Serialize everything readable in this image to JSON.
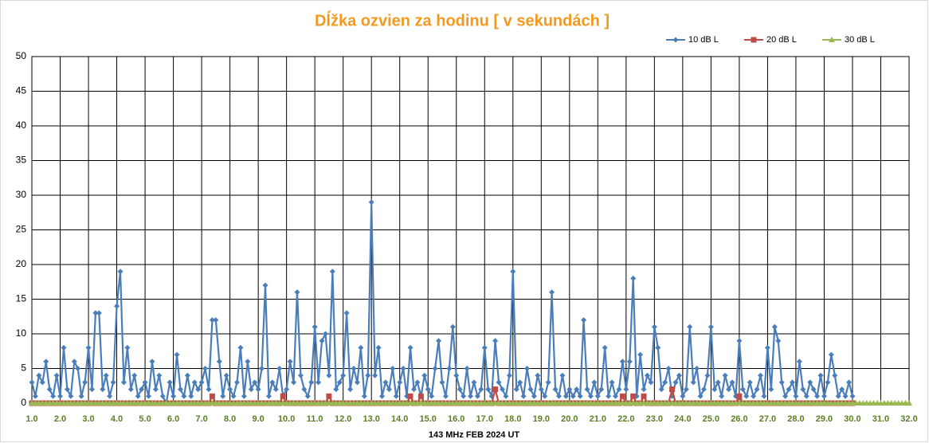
{
  "chart_data": {
    "type": "line",
    "title": "Dĺžka ozvien za hodinu [ v sekundách ]",
    "xlabel": "143 MHz FEB  2024  UT",
    "legend": "top-right",
    "grid": true,
    "xlim": [
      1,
      32
    ],
    "ylim": [
      0,
      50
    ],
    "yticks": [
      0,
      5,
      10,
      15,
      20,
      25,
      30,
      35,
      40,
      45,
      50
    ],
    "xticks": [
      {
        "value": 1,
        "label": "1.0"
      },
      {
        "value": 2,
        "label": "2.0"
      },
      {
        "value": 3,
        "label": "3.0"
      },
      {
        "value": 4,
        "label": "4.0"
      },
      {
        "value": 5,
        "label": "5.0"
      },
      {
        "value": 6,
        "label": "6.0"
      },
      {
        "value": 7,
        "label": "7.0"
      },
      {
        "value": 8,
        "label": "8.0"
      },
      {
        "value": 9,
        "label": "9.0"
      },
      {
        "value": 10,
        "label": "10.0"
      },
      {
        "value": 11,
        "label": "11.0"
      },
      {
        "value": 12,
        "label": "12.0"
      },
      {
        "value": 13,
        "label": "13.0"
      },
      {
        "value": 14,
        "label": "14.0"
      },
      {
        "value": 15,
        "label": "15.0"
      },
      {
        "value": 16,
        "label": "16.0"
      },
      {
        "value": 17,
        "label": "17.0"
      },
      {
        "value": 18,
        "label": "18.0"
      },
      {
        "value": 19,
        "label": "19.0"
      },
      {
        "value": 20,
        "label": "20.0"
      },
      {
        "value": 21,
        "label": "21.0"
      },
      {
        "value": 22,
        "label": "22.0"
      },
      {
        "value": 23,
        "label": "23.0"
      },
      {
        "value": 24,
        "label": "24.0"
      },
      {
        "value": 25,
        "label": "25.0"
      },
      {
        "value": 26,
        "label": "26.0"
      },
      {
        "value": 27,
        "label": "27.0"
      },
      {
        "value": 28,
        "label": "28.0"
      },
      {
        "value": 29,
        "label": "29.0"
      },
      {
        "value": 30,
        "label": "30.0"
      },
      {
        "value": 31,
        "label": "31.0"
      },
      {
        "value": 32,
        "label": "32.0"
      }
    ],
    "x": [
      1,
      1.125,
      1.25,
      1.375,
      1.5,
      1.625,
      1.75,
      1.875,
      2,
      2.125,
      2.25,
      2.375,
      2.5,
      2.625,
      2.75,
      2.875,
      3,
      3.125,
      3.25,
      3.375,
      3.5,
      3.625,
      3.75,
      3.875,
      4,
      4.125,
      4.25,
      4.375,
      4.5,
      4.625,
      4.75,
      4.875,
      5,
      5.125,
      5.25,
      5.375,
      5.5,
      5.625,
      5.75,
      5.875,
      6,
      6.125,
      6.25,
      6.375,
      6.5,
      6.625,
      6.75,
      6.875,
      7,
      7.125,
      7.25,
      7.375,
      7.5,
      7.625,
      7.75,
      7.875,
      8,
      8.125,
      8.25,
      8.375,
      8.5,
      8.625,
      8.75,
      8.875,
      9,
      9.125,
      9.25,
      9.375,
      9.5,
      9.625,
      9.75,
      9.875,
      10,
      10.125,
      10.25,
      10.375,
      10.5,
      10.625,
      10.75,
      10.875,
      11,
      11.125,
      11.25,
      11.375,
      11.5,
      11.625,
      11.75,
      11.875,
      12,
      12.125,
      12.25,
      12.375,
      12.5,
      12.625,
      12.75,
      12.875,
      13,
      13.125,
      13.25,
      13.375,
      13.5,
      13.625,
      13.75,
      13.875,
      14,
      14.125,
      14.25,
      14.375,
      14.5,
      14.625,
      14.75,
      14.875,
      15,
      15.125,
      15.25,
      15.375,
      15.5,
      15.625,
      15.75,
      15.875,
      16,
      16.125,
      16.25,
      16.375,
      16.5,
      16.625,
      16.75,
      16.875,
      17,
      17.125,
      17.25,
      17.375,
      17.5,
      17.625,
      17.75,
      17.875,
      18,
      18.125,
      18.25,
      18.375,
      18.5,
      18.625,
      18.75,
      18.875,
      19,
      19.125,
      19.25,
      19.375,
      19.5,
      19.625,
      19.75,
      19.875,
      20,
      20.125,
      20.25,
      20.375,
      20.5,
      20.625,
      20.75,
      20.875,
      21,
      21.125,
      21.25,
      21.375,
      21.5,
      21.625,
      21.75,
      21.875,
      22,
      22.125,
      22.25,
      22.375,
      22.5,
      22.625,
      22.75,
      22.875,
      23,
      23.125,
      23.25,
      23.375,
      23.5,
      23.625,
      23.75,
      23.875,
      24,
      24.125,
      24.25,
      24.375,
      24.5,
      24.625,
      24.75,
      24.875,
      25,
      25.125,
      25.25,
      25.375,
      25.5,
      25.625,
      25.75,
      25.875,
      26,
      26.125,
      26.25,
      26.375,
      26.5,
      26.625,
      26.75,
      26.875,
      27,
      27.125,
      27.25,
      27.375,
      27.5,
      27.625,
      27.75,
      27.875,
      28,
      28.125,
      28.25,
      28.375,
      28.5,
      28.625,
      28.75,
      28.875,
      29,
      29.125,
      29.25,
      29.375,
      29.5,
      29.625,
      29.75,
      29.875,
      30,
      30.125,
      30.25,
      30.375,
      30.5,
      30.625,
      30.75,
      30.875,
      31,
      31.125,
      31.25,
      31.375,
      31.5,
      31.625,
      31.75,
      31.875,
      32
    ],
    "series": [
      {
        "name": "10 dB L",
        "color": "#4a7ebb",
        "marker": "diamond",
        "values": [
          3,
          1,
          4,
          3,
          6,
          2,
          1,
          4,
          1,
          8,
          2,
          1,
          6,
          5,
          1,
          3,
          8,
          2,
          13,
          13,
          2,
          4,
          1,
          3,
          14,
          19,
          3,
          8,
          2,
          4,
          1,
          2,
          3,
          1,
          6,
          2,
          4,
          1,
          0,
          3,
          1,
          7,
          2,
          1,
          4,
          1,
          3,
          2,
          3,
          5,
          2,
          12,
          12,
          6,
          1,
          4,
          2,
          1,
          3,
          8,
          1,
          6,
          2,
          3,
          2,
          5,
          17,
          1,
          3,
          2,
          5,
          1,
          2,
          6,
          3,
          16,
          4,
          2,
          1,
          3,
          11,
          3,
          9,
          10,
          4,
          19,
          2,
          3,
          4,
          13,
          2,
          5,
          3,
          8,
          1,
          4,
          29,
          4,
          8,
          1,
          3,
          2,
          5,
          1,
          3,
          5,
          1,
          8,
          2,
          3,
          1,
          4,
          2,
          1,
          5,
          9,
          3,
          1,
          5,
          11,
          4,
          2,
          1,
          5,
          1,
          3,
          1,
          2,
          8,
          2,
          1,
          9,
          3,
          2,
          1,
          4,
          19,
          2,
          3,
          1,
          5,
          2,
          1,
          4,
          2,
          1,
          3,
          16,
          2,
          1,
          4,
          1,
          2,
          1,
          2,
          1,
          12,
          2,
          1,
          3,
          1,
          2,
          8,
          1,
          3,
          1,
          2,
          6,
          2,
          6,
          18,
          1,
          7,
          2,
          4,
          3,
          11,
          8,
          2,
          3,
          5,
          1,
          3,
          4,
          1,
          2,
          11,
          3,
          5,
          1,
          2,
          4,
          11,
          2,
          3,
          1,
          4,
          2,
          3,
          1,
          9,
          2,
          1,
          3,
          1,
          2,
          4,
          1,
          8,
          2,
          11,
          9,
          3,
          1,
          2,
          3,
          1,
          6,
          2,
          1,
          3,
          2,
          1,
          4,
          1,
          3,
          7,
          4,
          1,
          2,
          1,
          3,
          1,
          null,
          null,
          null,
          null,
          null,
          null,
          null,
          null,
          null,
          null,
          null,
          null,
          null,
          null,
          null,
          null
        ]
      },
      {
        "name": "20 dB L",
        "color": "#be4b48",
        "marker": "square",
        "values": [
          0,
          0,
          0,
          0,
          0,
          0,
          0,
          0,
          0,
          0,
          0,
          0,
          0,
          0,
          0,
          0,
          0,
          0,
          0,
          0,
          0,
          0,
          0,
          0,
          0,
          0,
          0,
          0,
          0,
          0,
          0,
          0,
          0,
          0,
          0,
          0,
          0,
          0,
          0,
          0,
          0,
          0,
          0,
          0,
          0,
          0,
          0,
          0,
          0,
          0,
          0,
          1,
          0,
          0,
          0,
          0,
          0,
          0,
          0,
          0,
          0,
          0,
          0,
          0,
          0,
          0,
          0,
          0,
          0,
          0,
          0,
          1,
          0,
          0,
          0,
          0,
          0,
          0,
          0,
          0,
          0,
          0,
          0,
          0,
          1,
          0,
          0,
          0,
          0,
          0,
          0,
          0,
          0,
          0,
          0,
          0,
          0,
          0,
          0,
          0,
          0,
          0,
          0,
          0,
          0,
          0,
          0,
          1,
          0,
          0,
          1,
          0,
          0,
          0,
          0,
          0,
          0,
          0,
          0,
          0,
          0,
          0,
          0,
          0,
          0,
          0,
          0,
          0,
          0,
          0,
          0,
          2,
          0,
          0,
          0,
          0,
          0,
          0,
          0,
          0,
          0,
          0,
          0,
          0,
          0,
          0,
          0,
          0,
          0,
          0,
          0,
          0,
          0,
          0,
          0,
          0,
          0,
          0,
          0,
          0,
          0,
          0,
          0,
          0,
          0,
          0,
          0,
          1,
          0,
          0,
          1,
          0,
          0,
          1,
          0,
          0,
          0,
          0,
          0,
          0,
          0,
          2,
          0,
          0,
          0,
          0,
          0,
          0,
          0,
          0,
          0,
          0,
          0,
          0,
          0,
          0,
          0,
          0,
          0,
          0,
          1,
          0,
          0,
          0,
          0,
          0,
          0,
          0,
          0,
          0,
          0,
          0,
          0,
          0,
          0,
          0,
          0,
          0,
          0,
          0,
          0,
          0,
          0,
          0,
          0,
          0,
          0,
          0,
          0,
          0,
          0,
          0,
          0,
          null,
          null,
          null,
          null,
          null,
          null,
          null,
          null,
          null,
          null,
          null,
          null,
          null,
          null,
          null,
          null
        ]
      },
      {
        "name": "30 dB L",
        "color": "#98b954",
        "marker": "triangle",
        "values": [
          0,
          0,
          0,
          0,
          0,
          0,
          0,
          0,
          0,
          0,
          0,
          0,
          0,
          0,
          0,
          0,
          0,
          0,
          0,
          0,
          0,
          0,
          0,
          0,
          0,
          0,
          0,
          0,
          0,
          0,
          0,
          0,
          0,
          0,
          0,
          0,
          0,
          0,
          0,
          0,
          0,
          0,
          0,
          0,
          0,
          0,
          0,
          0,
          0,
          0,
          0,
          0,
          0,
          0,
          0,
          0,
          0,
          0,
          0,
          0,
          0,
          0,
          0,
          0,
          0,
          0,
          0,
          0,
          0,
          0,
          0,
          0,
          0,
          0,
          0,
          0,
          0,
          0,
          0,
          0,
          0,
          0,
          0,
          0,
          0,
          0,
          0,
          0,
          0,
          0,
          0,
          0,
          0,
          0,
          0,
          0,
          0,
          0,
          0,
          0,
          0,
          0,
          0,
          0,
          0,
          0,
          0,
          0,
          0,
          0,
          0,
          0,
          0,
          0,
          0,
          0,
          0,
          0,
          0,
          0,
          0,
          0,
          0,
          0,
          0,
          0,
          0,
          0,
          0,
          0,
          0,
          0,
          0,
          0,
          0,
          0,
          0,
          0,
          0,
          0,
          0,
          0,
          0,
          0,
          0,
          0,
          0,
          0,
          0,
          0,
          0,
          0,
          0,
          0,
          0,
          0,
          0,
          0,
          0,
          0,
          0,
          0,
          0,
          0,
          0,
          0,
          0,
          0,
          0,
          0,
          0,
          0,
          0,
          0,
          0,
          0,
          0,
          0,
          0,
          0,
          0,
          0,
          0,
          0,
          0,
          0,
          0,
          0,
          0,
          0,
          0,
          0,
          0,
          0,
          0,
          0,
          0,
          0,
          0,
          0,
          0,
          0,
          0,
          0,
          0,
          0,
          0,
          0,
          0,
          0,
          0,
          0,
          0,
          0,
          0,
          0,
          0,
          0,
          0,
          0,
          0,
          0,
          0,
          0,
          0,
          0,
          0,
          0,
          0,
          0,
          0,
          0,
          0,
          0,
          0,
          0,
          0,
          0,
          0,
          0,
          0,
          0,
          0,
          0,
          0,
          0,
          0,
          0,
          0
        ]
      }
    ]
  }
}
